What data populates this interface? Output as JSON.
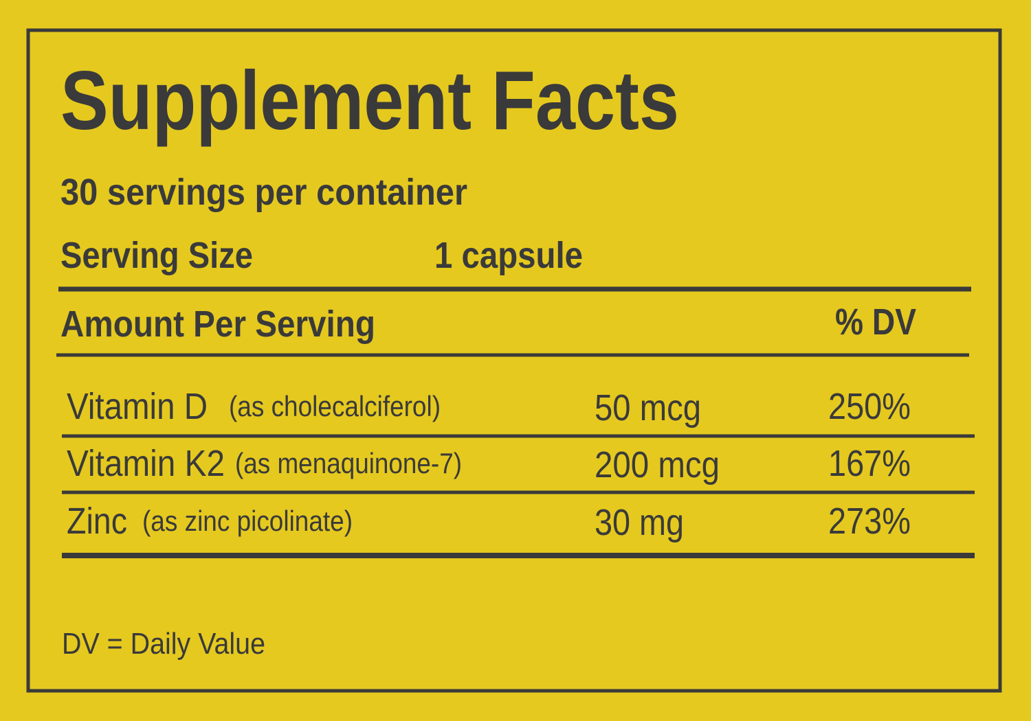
{
  "label": {
    "title": "Supplement Facts",
    "servings_per_container": "30 servings per container",
    "serving_size": {
      "label": "Serving Size",
      "value": "1 capsule"
    },
    "header": {
      "amount": "Amount Per Serving",
      "dv": "% DV"
    },
    "rows": [
      {
        "name": "Vitamin D",
        "source": "(as cholecalciferol)",
        "amount": "50 mcg",
        "dv": "250%"
      },
      {
        "name": "Vitamin K2",
        "source": "(as menaquinone-7)",
        "amount": "200 mcg",
        "dv": "167%"
      },
      {
        "name": "Zinc",
        "source": "(as zinc picolinate)",
        "amount": "30 mg",
        "dv": "273%"
      }
    ],
    "footnote": "DV = Daily Value"
  }
}
